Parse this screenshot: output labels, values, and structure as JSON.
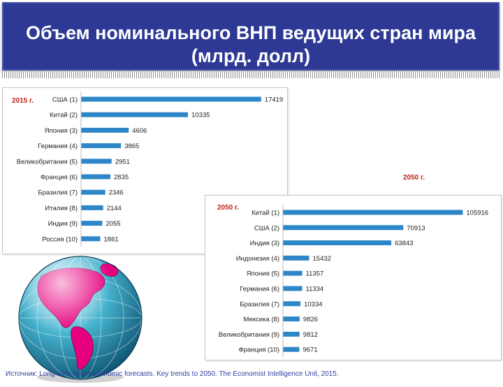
{
  "title": {
    "line1": "Объем номинального ВНП ведущих стран мира",
    "line2": "(млрд. долл)",
    "bg_color": "#2d3994"
  },
  "annotations": {
    "year_2050_outside": "2050 г."
  },
  "source_text": "Источник: Long-term macroeconomic forecasts. Key trends to 2050. The Economist Intelligence Unit, 2015.",
  "colors": {
    "bar": "#2d86c7",
    "year_label": "#c0201b"
  },
  "chart_data": [
    {
      "type": "bar",
      "orientation": "horizontal",
      "title": "2015 г.",
      "categories": [
        "США (1)",
        "Китай (2)",
        "Япония (3)",
        "Германия (4)",
        "Великобритания (5)",
        "Франция (6)",
        "Бразилия (7)",
        "Италия (8)",
        "Индия (9)",
        "Россия (10)"
      ],
      "values": [
        17419,
        10335,
        4606,
        3865,
        2951,
        2835,
        2346,
        2144,
        2055,
        1861
      ],
      "value_labels": [
        "17419",
        "10335",
        "4606",
        "3865",
        "2951",
        "2835",
        "2346",
        "2144",
        "2055",
        "1861"
      ],
      "xlim": [
        0,
        20000
      ],
      "grid": false,
      "legend": "none"
    },
    {
      "type": "bar",
      "orientation": "horizontal",
      "title": "2050 г.",
      "categories": [
        "Китай (1)",
        "США (2)",
        "Индия (3)",
        "Индонезия (4)",
        "Япония (5)",
        "Германия (6)",
        "Бразилия (7)",
        "Мексика (8)",
        "Великобритания (9)",
        "Франция (10)"
      ],
      "values": [
        105916,
        70913,
        63843,
        15432,
        11357,
        11334,
        10334,
        9826,
        9812,
        9671
      ],
      "value_labels": [
        "105916",
        "70913",
        "63843",
        "15432",
        "11357",
        "11334",
        "10334",
        "9826",
        "9812",
        "9671"
      ],
      "xlim": [
        0,
        107000
      ],
      "grid": false,
      "legend": "none"
    }
  ]
}
